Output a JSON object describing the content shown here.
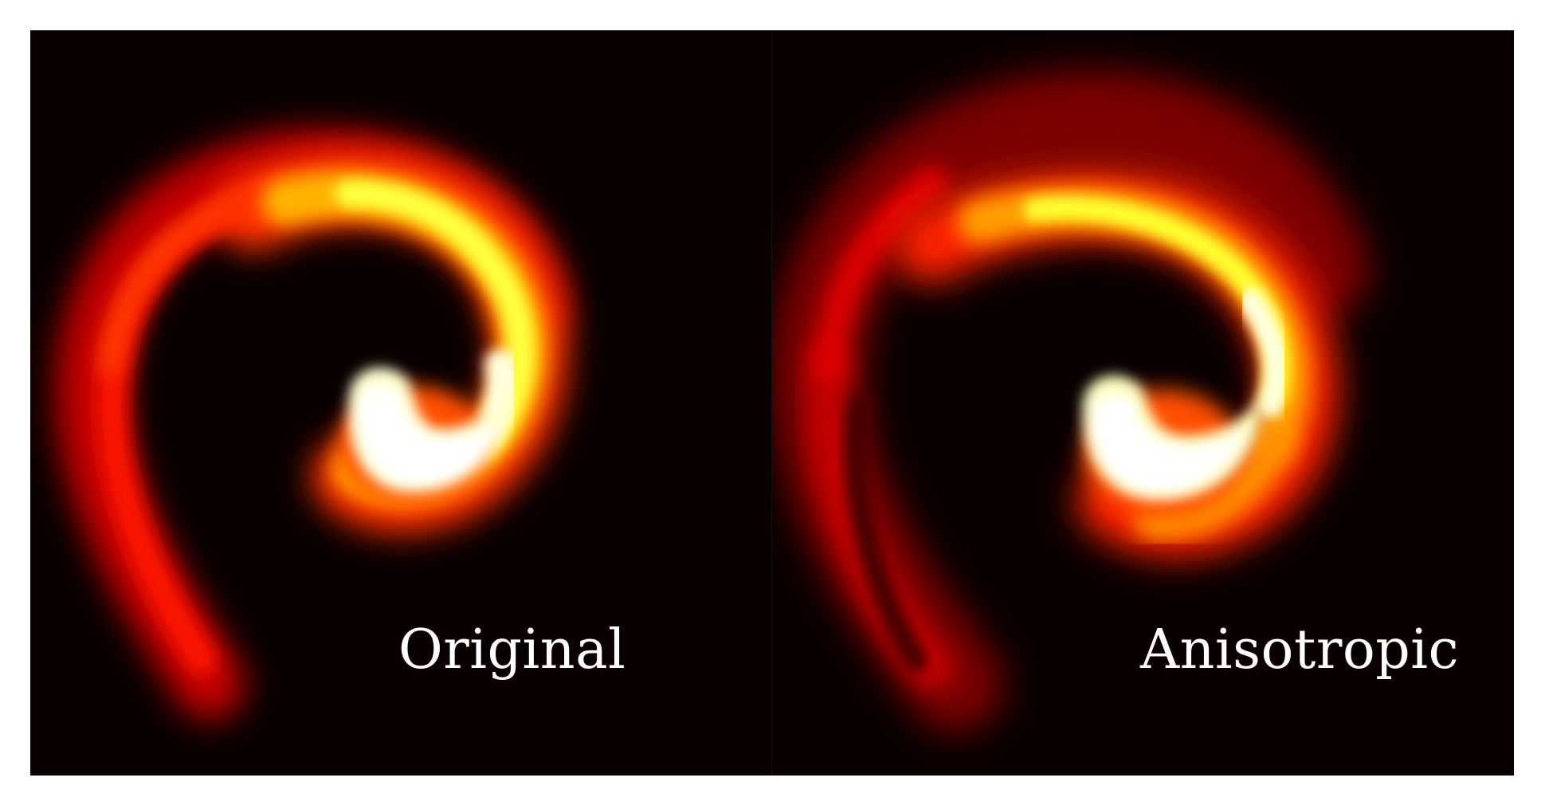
{
  "figure": {
    "background_color": "#ffffff",
    "colormap": "hot",
    "panels": [
      {
        "label": "Original",
        "background_color": "#0a0000"
      },
      {
        "label": "Anisotropic",
        "background_color": "#0a0000"
      }
    ]
  }
}
